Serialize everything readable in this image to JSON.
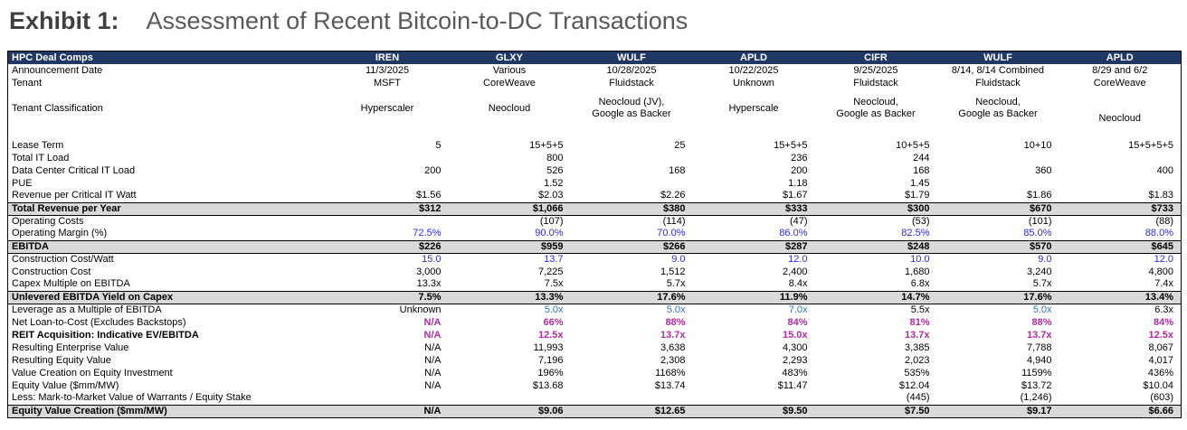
{
  "title": {
    "exhibit": "Exhibit 1:",
    "text": "Assessment of Recent Bitcoin-to-DC Transactions"
  },
  "colors": {
    "header_bg": "#1F3864",
    "band_bg": "#D9D9D9",
    "accent_blue": "#2B2BE0",
    "steel_blue": "#2E75B6",
    "magenta": "#B02CA2",
    "title_dark": "#404040",
    "title_gray": "#595959"
  },
  "table": {
    "header_label": "HPC Deal Comps",
    "columns": [
      "IREN",
      "GLXY",
      "WULF",
      "APLD",
      "CIFR",
      "WULF",
      "APLD"
    ],
    "rows": [
      {
        "label": "Announcement Date",
        "type": "text",
        "values": [
          "11/3/2025",
          "Various",
          "10/28/2025",
          "10/22/2025",
          "9/25/2025",
          "8/14, 8/14 Combined",
          "8/29 and 6/2"
        ]
      },
      {
        "label": "Tenant",
        "type": "text",
        "values": [
          "MSFT",
          "CoreWeave",
          "Fluidstack",
          "Unknown",
          "Fluidstack",
          "Fluidstack",
          "CoreWeave"
        ]
      },
      {
        "label": "Tenant Classification",
        "type": "text",
        "tall": true,
        "vbottom": [
          6
        ],
        "values": [
          "Hyperscaler",
          "Neocloud",
          "Neocloud (JV),\nGoogle as Backer",
          "Hyperscale",
          "Neocloud,\nGoogle as Backer",
          "Neocloud,\nGoogle as Backer",
          "Neocloud"
        ]
      },
      {
        "type": "spacer",
        "label": "",
        "values": [
          "",
          "",
          "",
          "",
          "",
          "",
          ""
        ]
      },
      {
        "label": "Lease Term",
        "type": "num",
        "values": [
          "5",
          "15+5+5",
          "25",
          "15+5+5",
          "10+5+5",
          "10+10",
          "15+5+5+5"
        ]
      },
      {
        "label": "Total IT Load",
        "type": "num",
        "values": [
          "",
          "800",
          "",
          "236",
          "244",
          "",
          ""
        ]
      },
      {
        "label": "Data Center Critical IT Load",
        "type": "num",
        "values": [
          "200",
          "526",
          "168",
          "200",
          "168",
          "360",
          "400"
        ]
      },
      {
        "label": "PUE",
        "type": "num",
        "values": [
          "",
          "1.52",
          "",
          "1.18",
          "1.45",
          "",
          ""
        ]
      },
      {
        "label": "Revenue per Critical IT Watt",
        "type": "num",
        "values": [
          "$1.56",
          "$2.03",
          "$2.26",
          "$1.67",
          "$1.79",
          "$1.86",
          "$1.83"
        ]
      },
      {
        "label": "Total Revenue per Year",
        "type": "band",
        "values": [
          "$312",
          "$1,066",
          "$380",
          "$333",
          "$300",
          "$670",
          "$733"
        ]
      },
      {
        "label": "Operating Costs",
        "type": "num",
        "values": [
          "",
          "(107)",
          "(114)",
          "(47)",
          "(53)",
          "(101)",
          "(88)"
        ]
      },
      {
        "label": "Operating Margin (%)",
        "type": "num",
        "value_color": "blue",
        "values": [
          "72.5%",
          "90.0%",
          "70.0%",
          "86.0%",
          "82.5%",
          "85.0%",
          "88.0%"
        ]
      },
      {
        "label": "EBITDA",
        "type": "band",
        "values": [
          "$226",
          "$959",
          "$266",
          "$287",
          "$248",
          "$570",
          "$645"
        ]
      },
      {
        "label": "Construction Cost/Watt",
        "type": "num",
        "value_color": "blue",
        "values": [
          "15.0",
          "13.7",
          "9.0",
          "12.0",
          "10.0",
          "9.0",
          "12.0"
        ]
      },
      {
        "label": "Construction Cost",
        "type": "num",
        "values": [
          "3,000",
          "7,225",
          "1,512",
          "2,400",
          "1,680",
          "3,240",
          "4,800"
        ]
      },
      {
        "label": "Capex Multiple on EBITDA",
        "type": "num",
        "values": [
          "13.3x",
          "7.5x",
          "5.7x",
          "8.4x",
          "6.8x",
          "5.7x",
          "7.4x"
        ]
      },
      {
        "label": "Unlevered EBITDA Yield on Capex",
        "type": "band",
        "values": [
          "7.5%",
          "13.3%",
          "17.6%",
          "11.9%",
          "14.7%",
          "17.6%",
          "13.4%"
        ]
      },
      {
        "label": "Leverage as a Multiple of EBITDA",
        "type": "num",
        "blue_indices": [
          1,
          2,
          3,
          5
        ],
        "values": [
          "Unknown",
          "5.0x",
          "5.0x",
          "7.0x",
          "5.5x",
          "5.0x",
          "6.3x"
        ]
      },
      {
        "label": "Net Loan-to-Cost (Excludes Backstops)",
        "type": "num",
        "value_color": "magenta",
        "values": [
          "N/A",
          "66%",
          "88%",
          "84%",
          "81%",
          "88%",
          "84%"
        ]
      },
      {
        "label": "REIT Acquisition: Indicative EV/EBITDA",
        "type": "num",
        "label_bold": true,
        "value_color": "magenta",
        "values": [
          "N/A",
          "12.5x",
          "13.7x",
          "15.0x",
          "13.7x",
          "13.7x",
          "12.5x"
        ]
      },
      {
        "label": "Resulting Enterprise Value",
        "type": "num",
        "values": [
          "N/A",
          "11,993",
          "3,638",
          "4,300",
          "3,385",
          "7,788",
          "8,067"
        ]
      },
      {
        "label": "Resulting Equity Value",
        "type": "num",
        "values": [
          "N/A",
          "7,196",
          "2,308",
          "2,293",
          "2,023",
          "4,940",
          "4,017"
        ]
      },
      {
        "label": "Value Creation on Equity Investment",
        "type": "num",
        "values": [
          "N/A",
          "196%",
          "1168%",
          "483%",
          "535%",
          "1159%",
          "436%"
        ]
      },
      {
        "label": "Equity Value ($mm/MW)",
        "type": "num",
        "values": [
          "N/A",
          "$13.68",
          "$13.74",
          "$11.47",
          "$12.04",
          "$13.72",
          "$10.04"
        ]
      },
      {
        "label": "Less: Mark-to-Market Value of Warrants / Equity Stake",
        "type": "num",
        "values": [
          "",
          "",
          "",
          "",
          "(445)",
          "(1,246)",
          "(603)"
        ]
      },
      {
        "label": "Equity Value Creation ($mm/MW)",
        "type": "band",
        "values": [
          "N/A",
          "$9.06",
          "$12.65",
          "$9.50",
          "$7.50",
          "$9.17",
          "$6.66"
        ]
      }
    ]
  }
}
